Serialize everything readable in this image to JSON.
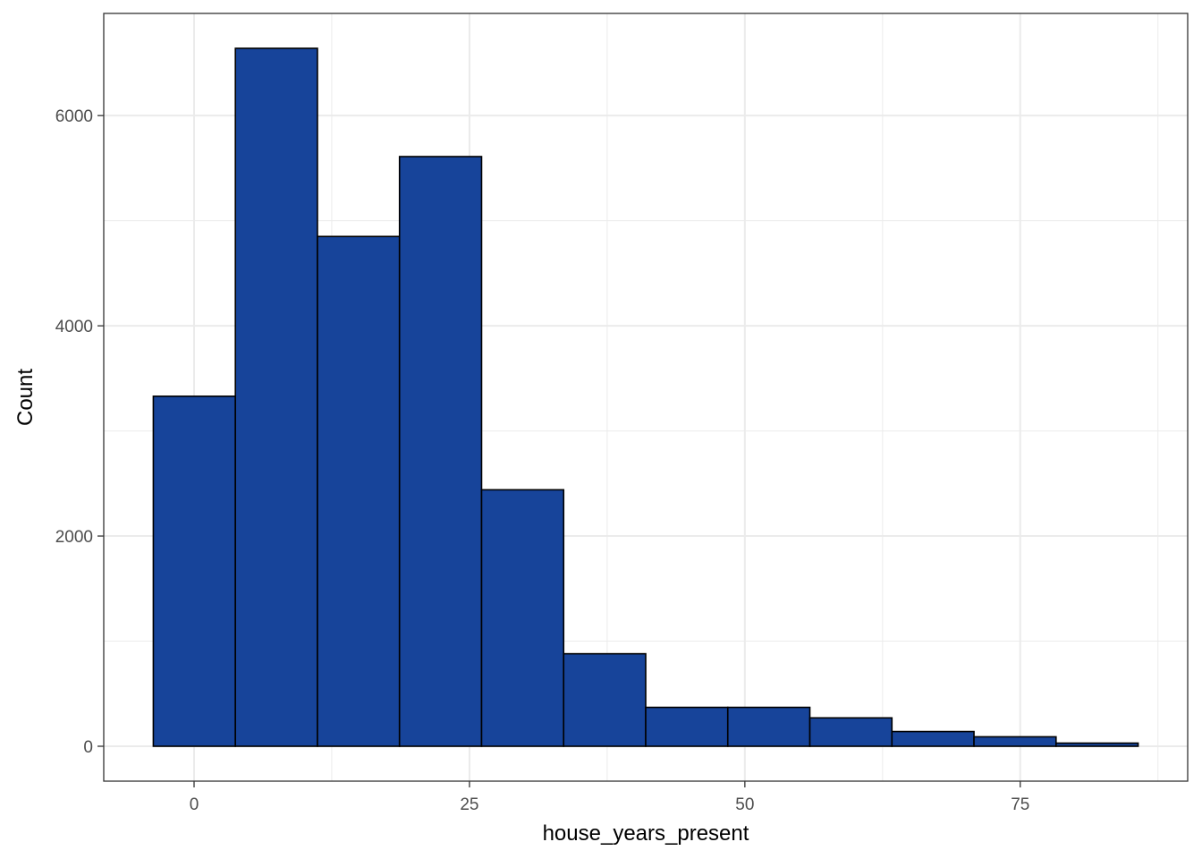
{
  "chart_data": {
    "type": "bar",
    "subtype": "histogram",
    "xlabel": "house_years_present",
    "ylabel": "Count",
    "bins": [
      {
        "x0": -3.7,
        "x1": 3.75,
        "count": 3330
      },
      {
        "x0": 3.75,
        "x1": 11.2,
        "count": 6640
      },
      {
        "x0": 11.2,
        "x1": 18.65,
        "count": 4850
      },
      {
        "x0": 18.65,
        "x1": 26.1,
        "count": 5610
      },
      {
        "x0": 26.1,
        "x1": 33.55,
        "count": 2440
      },
      {
        "x0": 33.55,
        "x1": 41.0,
        "count": 880
      },
      {
        "x0": 41.0,
        "x1": 48.45,
        "count": 370
      },
      {
        "x0": 48.45,
        "x1": 55.9,
        "count": 370
      },
      {
        "x0": 55.9,
        "x1": 63.35,
        "count": 270
      },
      {
        "x0": 63.35,
        "x1": 70.8,
        "count": 140
      },
      {
        "x0": 70.8,
        "x1": 78.25,
        "count": 90
      },
      {
        "x0": 78.25,
        "x1": 85.7,
        "count": 30
      }
    ],
    "xlim": [
      -8.2,
      90.2
    ],
    "ylim": [
      -332,
      6972
    ],
    "x_ticks": [
      0,
      25,
      50,
      75
    ],
    "x_minor_ticks": [
      12.5,
      37.5,
      62.5,
      87.5
    ],
    "y_ticks": [
      0,
      2000,
      4000,
      6000
    ],
    "y_minor_ticks": [
      1000,
      3000,
      5000
    ],
    "grid": true,
    "bar_fill": "#17449a",
    "bar_stroke": "#000000",
    "panel_border": "#333333",
    "grid_color": "#ebebeb"
  }
}
